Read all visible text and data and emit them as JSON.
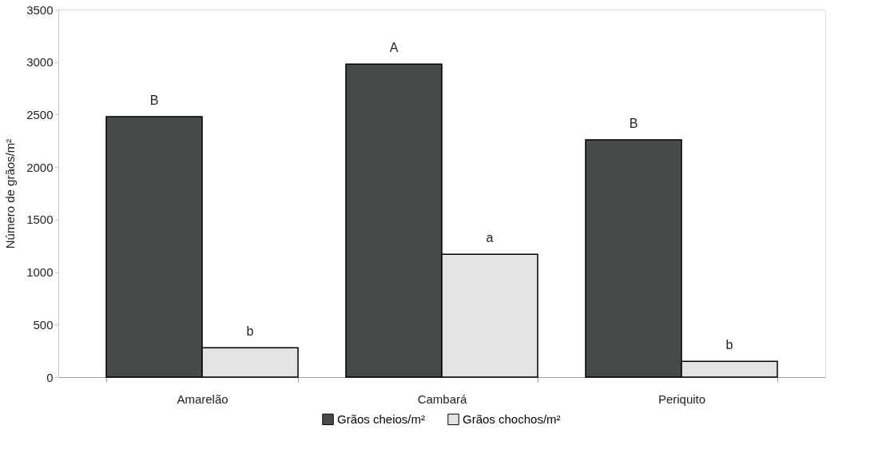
{
  "chart_data": {
    "type": "bar",
    "ylabel": "Número de grãos/m²",
    "categories": [
      "Amarelão",
      "Cambará",
      "Periquito"
    ],
    "series": [
      {
        "name": "Grãos cheios/m²",
        "color": "#474a4b",
        "values": [
          2480,
          2980,
          2260
        ],
        "value_labels": [
          "B",
          "A",
          "B"
        ]
      },
      {
        "name": "Grãos chochos/m²",
        "color": "#e3e3e1",
        "values": [
          280,
          1170,
          150
        ],
        "value_labels": [
          "b",
          "a",
          "b"
        ]
      }
    ],
    "ylim": [
      0,
      3500
    ],
    "yticks": [
      0,
      500,
      1000,
      1500,
      2000,
      2500,
      3000,
      3500
    ],
    "grid": false,
    "legend": "bottom"
  }
}
